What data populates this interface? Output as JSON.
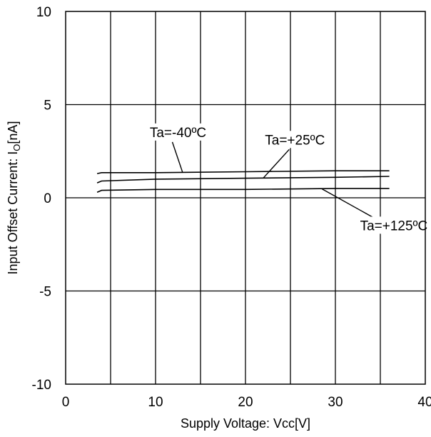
{
  "chart_data": {
    "type": "line",
    "xlabel": "Supply Voltage: Vcc[V]",
    "ylabel_prefix": "Input Offset Current: I",
    "ylabel_sub": "O",
    "ylabel_suffix": "[nA]",
    "xlim": [
      0,
      40
    ],
    "ylim": [
      -10,
      10
    ],
    "x_gridlines": [
      5,
      10,
      15,
      20,
      25,
      30,
      35
    ],
    "y_gridlines": [
      -5,
      0,
      5
    ],
    "xticks": [
      0,
      10,
      20,
      30,
      40
    ],
    "yticks": [
      -10,
      -5,
      0,
      5,
      10
    ],
    "grid": true,
    "series": [
      {
        "name": "Ta=-40ºC",
        "x": [
          3.5,
          4,
          10,
          20,
          30,
          36
        ],
        "y": [
          1.3,
          1.35,
          1.35,
          1.4,
          1.45,
          1.45
        ]
      },
      {
        "name": "Ta=+25ºC",
        "x": [
          3.5,
          4,
          10,
          20,
          30,
          36
        ],
        "y": [
          0.8,
          0.9,
          1.0,
          1.05,
          1.1,
          1.15
        ]
      },
      {
        "name": "Ta=+125ºC",
        "x": [
          3.5,
          4,
          10,
          20,
          30,
          36
        ],
        "y": [
          0.3,
          0.4,
          0.45,
          0.45,
          0.5,
          0.5
        ]
      }
    ],
    "annotations": [
      {
        "text": "Ta=-40ºC",
        "series": 0,
        "x": 12.5,
        "y": 3.3,
        "point_x": 13,
        "point_y": 1.37
      },
      {
        "text": "Ta=+25ºC",
        "series": 1,
        "x": 25.5,
        "y": 2.9,
        "point_x": 22,
        "point_y": 1.07
      },
      {
        "text": "Ta=+125ºC",
        "series": 2,
        "x": 36.5,
        "y": -1.7,
        "point_x": 28.5,
        "point_y": 0.48
      }
    ]
  }
}
